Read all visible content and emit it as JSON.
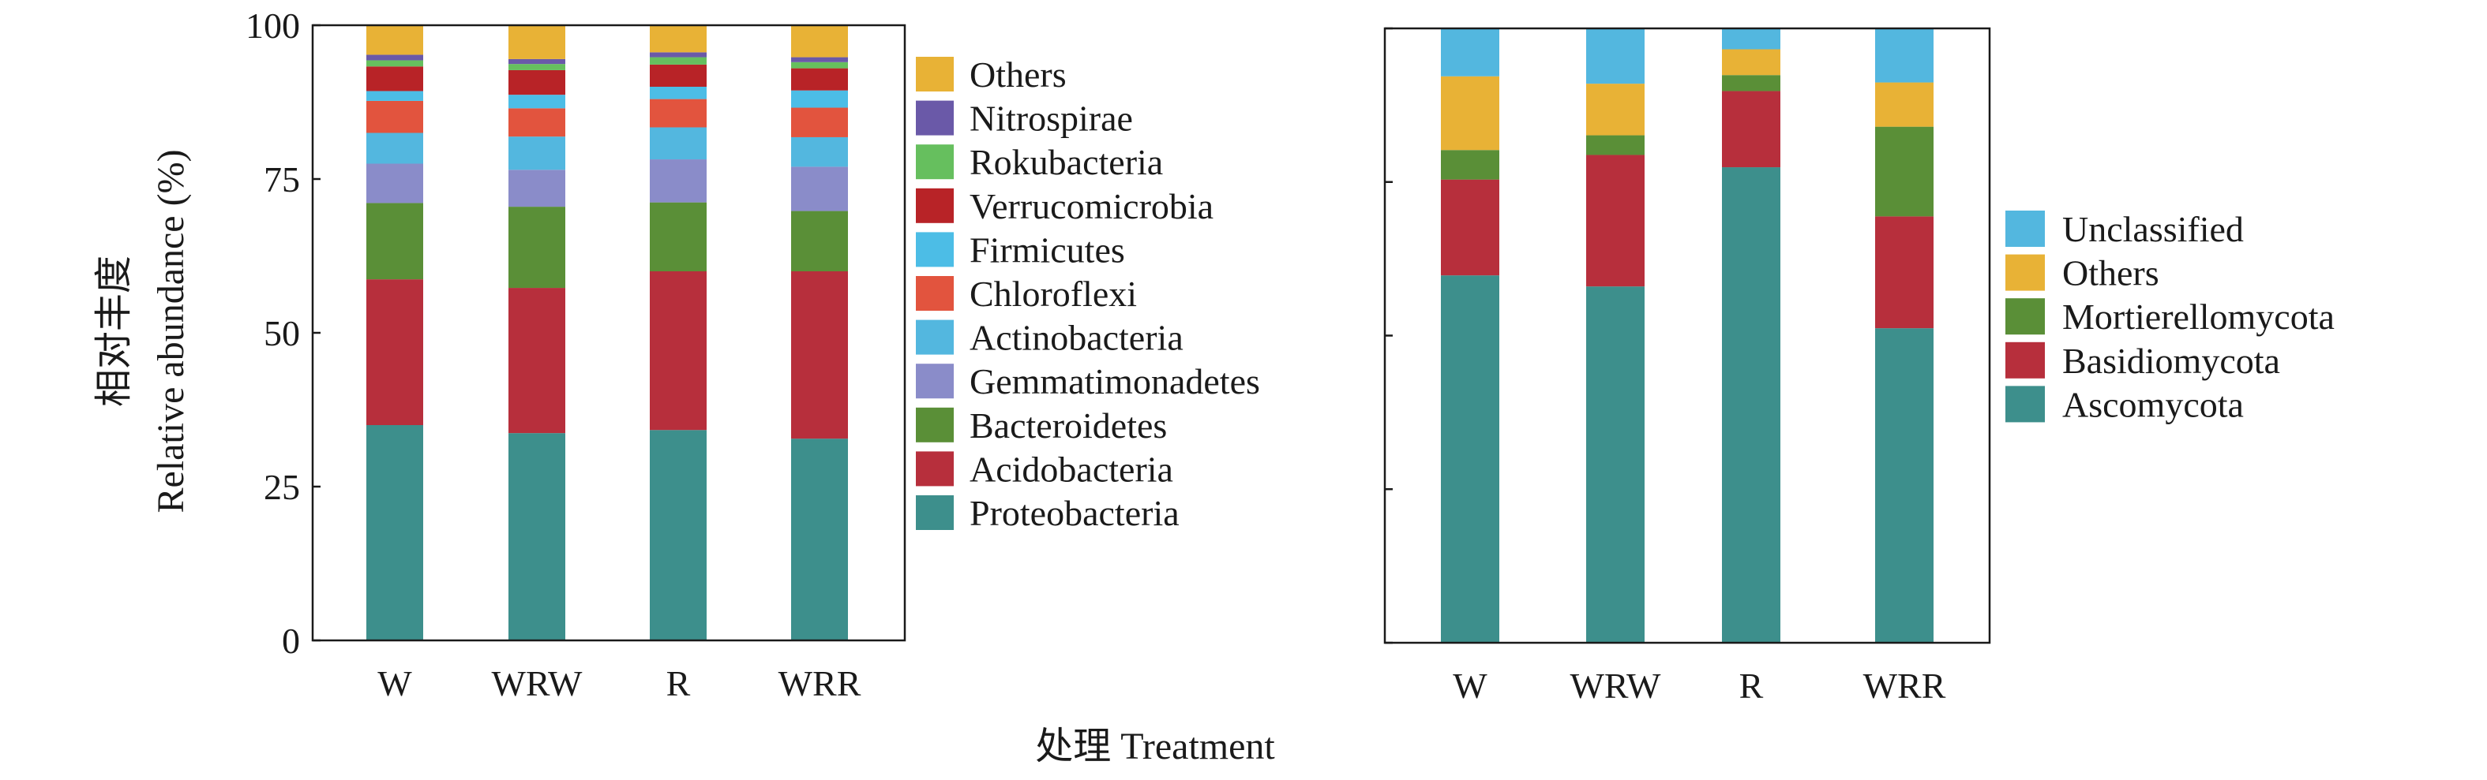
{
  "shared": {
    "ylabel_cn": "相对丰度",
    "ylabel_en": "Relative abundance (%)",
    "xlabel": "处理 Treatment"
  },
  "chart_data": [
    {
      "type": "bar",
      "stacked": true,
      "categories": [
        "W",
        "WRW",
        "R",
        "WRR"
      ],
      "ylim": [
        0,
        100
      ],
      "yticks": [
        "0",
        "25",
        "50",
        "75",
        "100"
      ],
      "legend_position": "right",
      "series": [
        {
          "name": "Proteobacteria",
          "color": "#3d8f8c",
          "values": [
            35.0,
            33.7,
            34.2,
            32.8
          ]
        },
        {
          "name": "Acidobacteria",
          "color": "#b72f3c",
          "values": [
            23.7,
            23.6,
            25.8,
            27.2
          ]
        },
        {
          "name": "Bacteroidetes",
          "color": "#5a8f37",
          "values": [
            12.4,
            13.2,
            11.2,
            9.8
          ]
        },
        {
          "name": "Gemmatimonadetes",
          "color": "#8a8cc9",
          "values": [
            6.4,
            6.0,
            7.0,
            7.2
          ]
        },
        {
          "name": "Actinobacteria",
          "color": "#53b7df",
          "values": [
            5.0,
            5.4,
            5.2,
            4.8
          ]
        },
        {
          "name": "Chloroflexi",
          "color": "#e2543e",
          "values": [
            5.2,
            4.6,
            4.6,
            4.8
          ]
        },
        {
          "name": "Firmicutes",
          "color": "#4cbde6",
          "values": [
            1.6,
            2.2,
            2.0,
            2.8
          ]
        },
        {
          "name": "Verrucomicrobia",
          "color": "#b82327",
          "values": [
            4.0,
            4.0,
            3.6,
            3.6
          ]
        },
        {
          "name": "Rokubacteria",
          "color": "#66bf5e",
          "values": [
            1.0,
            1.0,
            1.2,
            1.0
          ]
        },
        {
          "name": "Nitrospirae",
          "color": "#6a59a8",
          "values": [
            0.9,
            0.8,
            0.8,
            0.8
          ]
        },
        {
          "name": "Others",
          "color": "#e8b236",
          "values": [
            4.8,
            5.5,
            4.4,
            5.2
          ]
        }
      ]
    },
    {
      "type": "bar",
      "stacked": true,
      "categories": [
        "W",
        "WRW",
        "R",
        "WRR"
      ],
      "ylim": [
        0,
        100
      ],
      "legend_position": "right",
      "series": [
        {
          "name": "Ascomycota",
          "color": "#3d8f8c",
          "values": [
            59.8,
            58.0,
            77.4,
            51.2
          ]
        },
        {
          "name": "Basidiomycota",
          "color": "#b72f3c",
          "values": [
            15.6,
            21.4,
            12.4,
            18.2
          ]
        },
        {
          "name": "Mortierellomycota",
          "color": "#5a8f37",
          "values": [
            4.8,
            3.2,
            2.6,
            14.6
          ]
        },
        {
          "name": "Others",
          "color": "#e8b236",
          "values": [
            12.0,
            8.4,
            4.2,
            7.2
          ]
        },
        {
          "name": "Unclassified",
          "color": "#53b7df",
          "values": [
            7.8,
            9.0,
            3.4,
            8.8
          ]
        }
      ]
    }
  ]
}
